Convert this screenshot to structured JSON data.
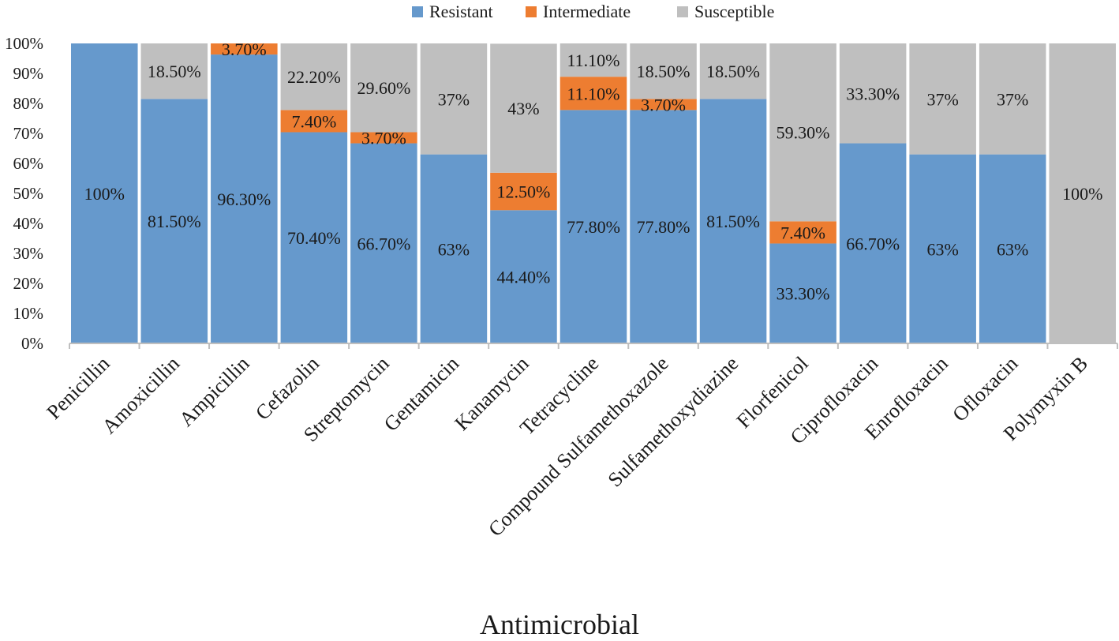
{
  "chart_data": {
    "type": "bar",
    "stacked": true,
    "xlabel": "Antimicrobial",
    "ylabel": "",
    "ylim": [
      0,
      100
    ],
    "y_ticks": [
      "0%",
      "10%",
      "20%",
      "30%",
      "40%",
      "50%",
      "60%",
      "70%",
      "80%",
      "90%",
      "100%"
    ],
    "legend_position": "top",
    "categories": [
      "Penicillin",
      "Amoxicillin",
      "Ampicillin",
      "Cefazolin",
      "Streptomycin",
      "Gentamicin",
      "Kanamycin",
      "Tetracycline",
      "Compound Sulfamethoxazole",
      "Sulfamethoxydiazine",
      "Florfenicol",
      "Ciprofloxacin",
      "Enrofloxacin",
      "Ofloxacin",
      "Polymyxin B"
    ],
    "series": [
      {
        "name": "Resistant",
        "color": "#6699cc",
        "values": [
          100,
          81.5,
          96.3,
          70.4,
          66.7,
          63,
          44.4,
          77.8,
          77.8,
          81.5,
          33.3,
          66.7,
          63,
          63,
          0
        ],
        "labels": [
          "100%",
          "81.50%",
          "96.30%",
          "70.40%",
          "66.70%",
          "63%",
          "44.40%",
          "77.80%",
          "77.80%",
          "81.50%",
          "33.30%",
          "66.70%",
          "63%",
          "63%",
          ""
        ]
      },
      {
        "name": "Intermediate",
        "color": "#ed7d31",
        "values": [
          0,
          0,
          3.7,
          7.4,
          3.7,
          0,
          12.5,
          11.1,
          3.7,
          0,
          7.4,
          0,
          0,
          0,
          0
        ],
        "labels": [
          "",
          "",
          "3.70%",
          "7.40%",
          "3.70%",
          "",
          "12.50%",
          "11.10%",
          "3.70%",
          "",
          "7.40%",
          "",
          "",
          "",
          ""
        ]
      },
      {
        "name": "Susceptible",
        "color": "#bfbfbf",
        "values": [
          0,
          18.5,
          0,
          22.2,
          29.6,
          37,
          43,
          11.1,
          18.5,
          18.5,
          59.3,
          33.3,
          37,
          37,
          100
        ],
        "labels": [
          "",
          "18.50%",
          "",
          "22.20%",
          "29.60%",
          "37%",
          "43%",
          "11.10%",
          "18.50%",
          "18.50%",
          "59.30%",
          "33.30%",
          "37%",
          "37%",
          "100%"
        ]
      }
    ]
  }
}
